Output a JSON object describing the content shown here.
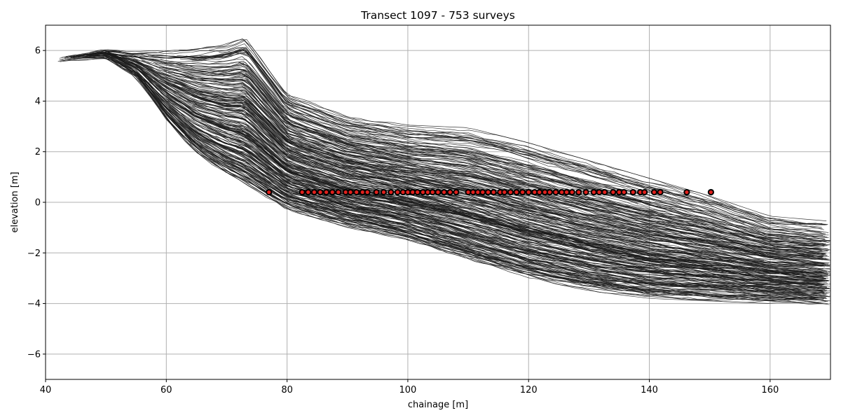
{
  "chart_data": {
    "type": "line",
    "title": "Transect 1097  - 753 surveys",
    "xlabel": "chainage [m]",
    "ylabel": "elevation [m]",
    "xlim": [
      40,
      170
    ],
    "ylim": [
      -7,
      7
    ],
    "xticks": [
      40,
      60,
      80,
      100,
      120,
      140,
      160
    ],
    "yticks": [
      -6,
      -4,
      -2,
      0,
      2,
      4,
      6
    ],
    "xtick_labels": [
      "40",
      "60",
      "80",
      "100",
      "120",
      "140",
      "160"
    ],
    "ytick_labels": [
      "−6",
      "−4",
      "−2",
      "0",
      "2",
      "4",
      "6"
    ],
    "grid": true,
    "line_color": "#1a1a1a",
    "marker_fill": "#e0201c",
    "marker_edge": "#000000",
    "survey_count": 753,
    "shoreline_elevation": 0.4,
    "profile_envelope": {
      "x": [
        42,
        50,
        55,
        60,
        65,
        70,
        73,
        80,
        90,
        100,
        110,
        120,
        130,
        140,
        150,
        160,
        170
      ],
      "upper": [
        5.7,
        6.0,
        5.9,
        6.0,
        6.1,
        6.3,
        6.6,
        4.3,
        3.4,
        3.0,
        2.9,
        2.3,
        1.6,
        0.9,
        0.2,
        -0.6,
        -0.8
      ],
      "lower": [
        5.6,
        5.8,
        5.0,
        3.3,
        2.0,
        1.2,
        0.8,
        -0.2,
        -0.9,
        -1.4,
        -2.2,
        -2.9,
        -3.4,
        -3.7,
        -3.8,
        -3.9,
        -4.0
      ]
    },
    "shoreline_x": [
      77.0,
      82.5,
      83.5,
      84.5,
      85.5,
      86.5,
      87.5,
      88.5,
      89.7,
      90.5,
      91.5,
      92.5,
      93.3,
      94.8,
      96.0,
      97.2,
      98.3,
      99.2,
      100.0,
      100.8,
      101.6,
      102.5,
      103.3,
      104.1,
      105.0,
      106.0,
      107.0,
      108.0,
      110.0,
      110.8,
      111.6,
      112.4,
      113.3,
      114.2,
      115.3,
      116.0,
      117.0,
      118.0,
      119.0,
      120.0,
      121.0,
      121.8,
      122.7,
      123.5,
      124.5,
      125.5,
      126.3,
      127.2,
      128.3,
      129.5,
      130.8,
      131.7,
      132.6,
      134.0,
      135.0,
      135.8,
      137.3,
      138.5,
      139.2,
      140.8,
      141.8,
      146.2,
      150.2
    ]
  }
}
